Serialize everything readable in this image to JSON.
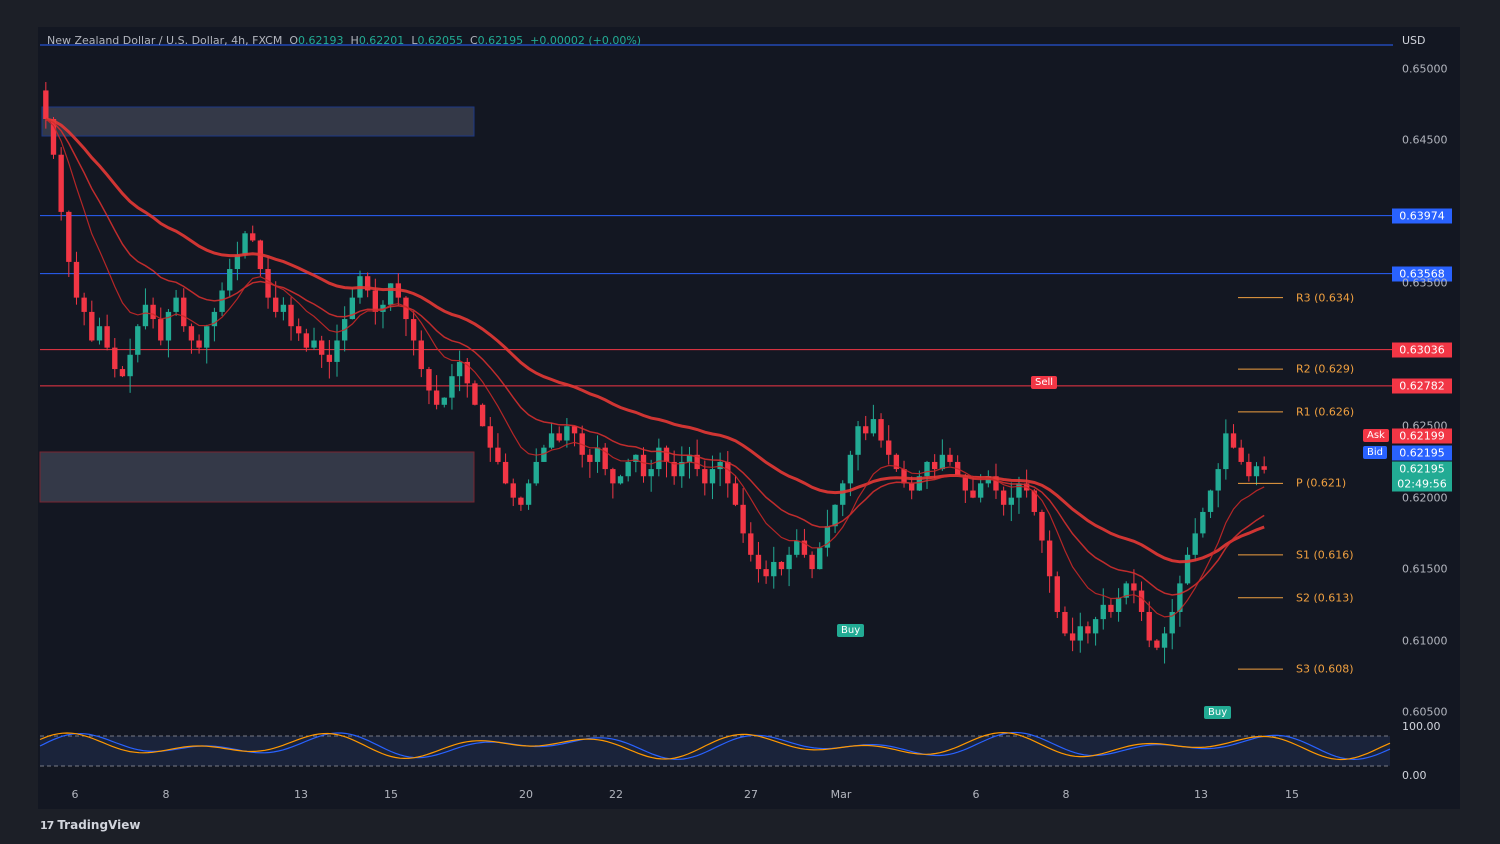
{
  "header": {
    "symbol": "New Zealand Dollar / U.S. Dollar, 4h, FXCM",
    "o_label": "O",
    "o": "0.62193",
    "h_label": "H",
    "h": "0.62201",
    "l_label": "L",
    "l": "0.62055",
    "c_label": "C",
    "c": "0.62195",
    "change": "+0.00002 (+0.00%)"
  },
  "currency": "USD",
  "logo": "TradingView",
  "colors": {
    "up": "#22ab94",
    "down": "#f23645",
    "ema": "#e53935",
    "level_blue": "#2962ff",
    "level_red": "#f23645",
    "pivot": "#f0a040"
  },
  "chart_data": {
    "type": "candlestick",
    "title": "New Zealand Dollar / U.S. Dollar, 4h, FXCM",
    "x_ticks": [
      "6",
      "8",
      "13",
      "15",
      "20",
      "22",
      "27",
      "Mar",
      "6",
      "8",
      "13",
      "15"
    ],
    "ylim": [
      0.601,
      0.653
    ],
    "y_ticks": [
      "0.65000",
      "0.64500",
      "0.63500",
      "0.62500",
      "0.62000",
      "0.61500",
      "0.61000",
      "0.60500"
    ],
    "horizontal_levels": [
      {
        "value": "0.63974",
        "color": "blue"
      },
      {
        "value": "0.63568",
        "color": "blue"
      },
      {
        "value": "0.63036",
        "color": "red"
      },
      {
        "value": "0.62782",
        "color": "red"
      }
    ],
    "pivots": [
      {
        "label": "R3 (0.634)",
        "value": 0.634
      },
      {
        "label": "R2 (0.629)",
        "value": 0.629
      },
      {
        "label": "R1 (0.626)",
        "value": 0.626
      },
      {
        "label": "P (0.621)",
        "value": 0.621
      },
      {
        "label": "S1 (0.616)",
        "value": 0.616
      },
      {
        "label": "S2 (0.613)",
        "value": 0.613
      },
      {
        "label": "S3 (0.608)",
        "value": 0.608
      }
    ],
    "ask": {
      "label": "Ask",
      "value": "0.62199"
    },
    "bid": {
      "label": "Bid",
      "value": "0.62195"
    },
    "last": {
      "value": "0.62195",
      "countdown": "02:49:56"
    },
    "signals": [
      {
        "label": "Buy",
        "date": "Mar 1"
      },
      {
        "label": "Sell",
        "date": "Mar 6"
      },
      {
        "label": "Buy",
        "date": "Mar 13"
      }
    ],
    "closes": [
      0.6465,
      0.644,
      0.64,
      0.6365,
      0.634,
      0.633,
      0.631,
      0.632,
      0.6305,
      0.629,
      0.6285,
      0.63,
      0.632,
      0.6335,
      0.6325,
      0.631,
      0.633,
      0.634,
      0.632,
      0.631,
      0.6305,
      0.632,
      0.633,
      0.6345,
      0.636,
      0.637,
      0.6385,
      0.638,
      0.636,
      0.634,
      0.633,
      0.6335,
      0.632,
      0.6315,
      0.6305,
      0.631,
      0.63,
      0.6295,
      0.631,
      0.6325,
      0.634,
      0.6355,
      0.6345,
      0.633,
      0.6335,
      0.635,
      0.634,
      0.6325,
      0.631,
      0.629,
      0.6275,
      0.6265,
      0.627,
      0.6285,
      0.6295,
      0.628,
      0.6265,
      0.625,
      0.6235,
      0.6225,
      0.621,
      0.62,
      0.6195,
      0.621,
      0.6225,
      0.6235,
      0.6245,
      0.624,
      0.625,
      0.6245,
      0.623,
      0.6225,
      0.6235,
      0.622,
      0.621,
      0.6215,
      0.6225,
      0.623,
      0.6215,
      0.622,
      0.6235,
      0.6225,
      0.6215,
      0.6225,
      0.623,
      0.622,
      0.621,
      0.622,
      0.6225,
      0.621,
      0.6195,
      0.6175,
      0.616,
      0.615,
      0.6145,
      0.6155,
      0.615,
      0.616,
      0.617,
      0.616,
      0.615,
      0.6165,
      0.618,
      0.6195,
      0.621,
      0.623,
      0.625,
      0.6245,
      0.6255,
      0.624,
      0.623,
      0.622,
      0.621,
      0.6205,
      0.6215,
      0.6225,
      0.622,
      0.623,
      0.6225,
      0.6215,
      0.6205,
      0.62,
      0.621,
      0.6215,
      0.6205,
      0.6195,
      0.62,
      0.621,
      0.6205,
      0.619,
      0.617,
      0.6145,
      0.612,
      0.6105,
      0.61,
      0.611,
      0.6105,
      0.6115,
      0.6125,
      0.612,
      0.613,
      0.614,
      0.6135,
      0.612,
      0.61,
      0.6095,
      0.6105,
      0.612,
      0.614,
      0.616,
      0.6175,
      0.619,
      0.6205,
      0.622,
      0.6245,
      0.6235,
      0.6225,
      0.6215,
      0.6222,
      0.62195
    ],
    "oscillator": {
      "ylim": [
        0,
        100
      ],
      "ticks": [
        "100.00",
        "0.00"
      ],
      "upper": 80,
      "lower": 20
    }
  }
}
